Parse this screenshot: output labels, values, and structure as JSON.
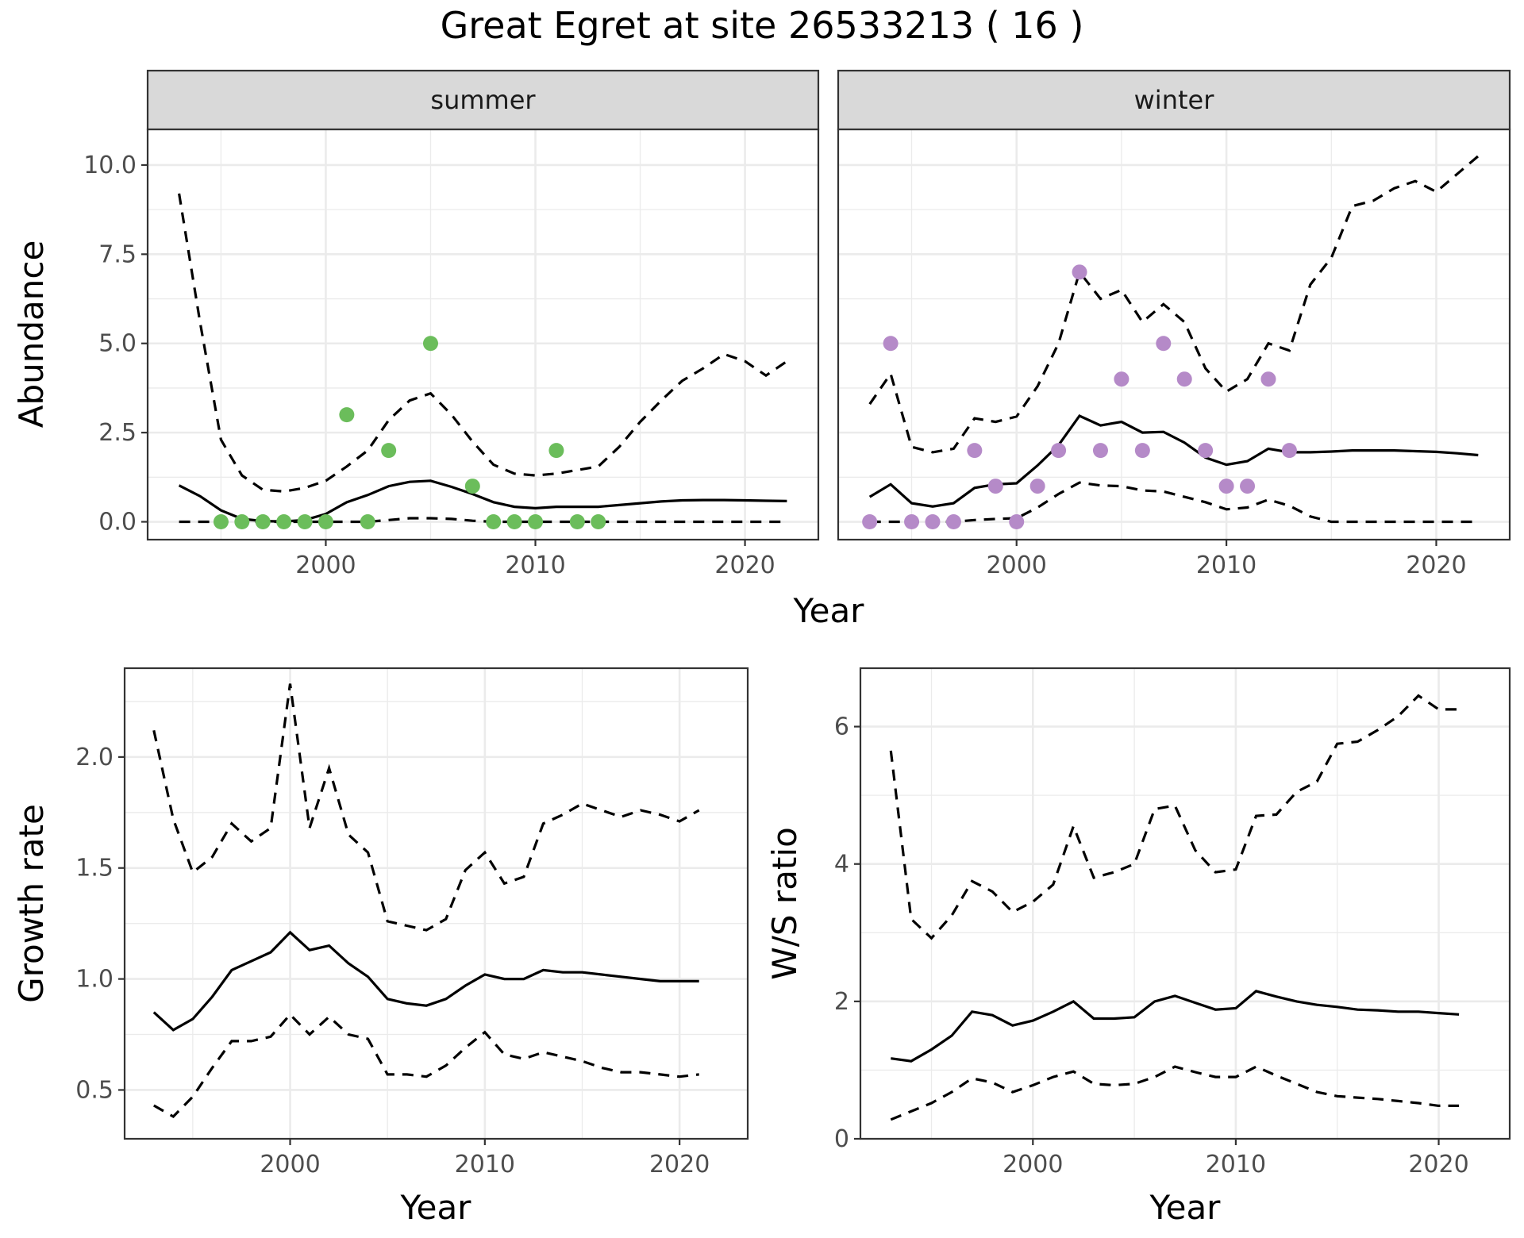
{
  "title": "Great Egret at site 26533213 ( 16 )",
  "chart_data": [
    {
      "type": "line",
      "panel": "abundance",
      "facets": [
        "summer",
        "winter"
      ],
      "xlabel": "Year",
      "ylabel": "Abundance",
      "xlim": [
        1991.5,
        2023.5
      ],
      "ylim": [
        -0.5,
        11.0
      ],
      "x_ticks": [
        2000,
        2010,
        2020
      ],
      "y_ticks": [
        0.0,
        2.5,
        5.0,
        7.5,
        10.0
      ],
      "y_tick_labels": [
        "0.0",
        "2.5",
        "5.0",
        "7.5",
        "10.0"
      ],
      "grid": true,
      "point_colors": {
        "summer": "#6bbd5b",
        "winter": "#b58ac8"
      },
      "summer": {
        "x": [
          1993,
          1994,
          1995,
          1996,
          1997,
          1998,
          1999,
          2000,
          2001,
          2002,
          2003,
          2004,
          2005,
          2006,
          2007,
          2008,
          2009,
          2010,
          2011,
          2012,
          2013,
          2014,
          2015,
          2016,
          2017,
          2018,
          2019,
          2020,
          2021,
          2022
        ],
        "estimate": [
          1.02,
          0.72,
          0.32,
          0.08,
          0.02,
          0.01,
          0.05,
          0.22,
          0.55,
          0.75,
          1.0,
          1.12,
          1.15,
          0.98,
          0.78,
          0.55,
          0.42,
          0.38,
          0.42,
          0.42,
          0.42,
          0.47,
          0.52,
          0.57,
          0.6,
          0.61,
          0.61,
          0.6,
          0.59,
          0.58
        ],
        "upper": [
          9.2,
          5.6,
          2.3,
          1.3,
          0.9,
          0.85,
          0.95,
          1.15,
          1.55,
          2.0,
          2.85,
          3.4,
          3.6,
          3.0,
          2.25,
          1.6,
          1.35,
          1.3,
          1.35,
          1.45,
          1.55,
          2.1,
          2.8,
          3.4,
          3.95,
          4.3,
          4.7,
          4.5,
          4.1,
          4.5
        ],
        "lower": [
          0.0,
          0.0,
          0.0,
          0.0,
          0.0,
          0.0,
          0.0,
          0.0,
          0.0,
          0.0,
          0.05,
          0.1,
          0.1,
          0.08,
          0.03,
          0.0,
          0.0,
          0.0,
          0.0,
          0.0,
          0.0,
          0.0,
          0.0,
          0.0,
          0.0,
          0.0,
          0.0,
          0.0,
          0.0,
          0.0
        ],
        "observed_x": [
          1995,
          1996,
          1997,
          1998,
          1999,
          2000,
          2001,
          2002,
          2003,
          2005,
          2007,
          2008,
          2009,
          2010,
          2011,
          2012,
          2013
        ],
        "observed_y": [
          0,
          0,
          0,
          0,
          0,
          0,
          3,
          0,
          2,
          5,
          1,
          0,
          0,
          0,
          2,
          0,
          0
        ]
      },
      "winter": {
        "x": [
          1993,
          1994,
          1995,
          1996,
          1997,
          1998,
          1999,
          2000,
          2001,
          2002,
          2003,
          2004,
          2005,
          2006,
          2007,
          2008,
          2009,
          2010,
          2011,
          2012,
          2013,
          2014,
          2015,
          2016,
          2017,
          2018,
          2019,
          2020,
          2021,
          2022
        ],
        "estimate": [
          0.7,
          1.05,
          0.52,
          0.43,
          0.52,
          0.95,
          1.05,
          1.08,
          1.58,
          2.15,
          2.97,
          2.7,
          2.8,
          2.5,
          2.52,
          2.22,
          1.8,
          1.6,
          1.7,
          2.05,
          1.95,
          1.95,
          1.97,
          2.0,
          2.0,
          2.0,
          1.98,
          1.96,
          1.92,
          1.87
        ],
        "upper": [
          3.3,
          4.15,
          2.1,
          1.95,
          2.05,
          2.9,
          2.8,
          2.95,
          3.8,
          5.0,
          7.0,
          6.25,
          6.5,
          5.6,
          6.1,
          5.6,
          4.3,
          3.65,
          4.0,
          5.0,
          4.8,
          6.65,
          7.4,
          8.85,
          9.0,
          9.35,
          9.55,
          9.25,
          9.75,
          10.25
        ],
        "lower": [
          0.0,
          0.0,
          0.0,
          0.0,
          0.0,
          0.05,
          0.08,
          0.1,
          0.4,
          0.78,
          1.1,
          1.02,
          1.0,
          0.88,
          0.85,
          0.7,
          0.55,
          0.35,
          0.4,
          0.62,
          0.45,
          0.15,
          0.0,
          0.0,
          0.0,
          0.0,
          0.0,
          0.0,
          0.0,
          0.0
        ],
        "observed_x": [
          1993,
          1994,
          1995,
          1996,
          1997,
          1998,
          1999,
          2000,
          2001,
          2002,
          2003,
          2004,
          2005,
          2006,
          2007,
          2008,
          2009,
          2010,
          2011,
          2012,
          2013
        ],
        "observed_y": [
          0,
          5,
          0,
          0,
          0,
          2,
          1,
          0,
          1,
          2,
          7,
          2,
          4,
          2,
          5,
          4,
          2,
          1,
          1,
          4,
          2
        ]
      }
    },
    {
      "type": "line",
      "panel": "growth",
      "xlabel": "Year",
      "ylabel": "Growth rate",
      "xlim": [
        1991.5,
        2023.5
      ],
      "ylim": [
        0.28,
        2.4
      ],
      "x_ticks": [
        2000,
        2010,
        2020
      ],
      "y_ticks": [
        0.5,
        1.0,
        1.5,
        2.0
      ],
      "y_tick_labels": [
        "0.5",
        "1.0",
        "1.5",
        "2.0"
      ],
      "grid": true,
      "x": [
        1993,
        1994,
        1995,
        1996,
        1997,
        1998,
        1999,
        2000,
        2001,
        2002,
        2003,
        2004,
        2005,
        2006,
        2007,
        2008,
        2009,
        2010,
        2011,
        2012,
        2013,
        2014,
        2015,
        2016,
        2017,
        2018,
        2019,
        2020,
        2021
      ],
      "estimate": [
        0.85,
        0.77,
        0.82,
        0.92,
        1.04,
        1.08,
        1.12,
        1.21,
        1.13,
        1.15,
        1.07,
        1.01,
        0.91,
        0.89,
        0.88,
        0.91,
        0.97,
        1.02,
        1.0,
        1.0,
        1.04,
        1.03,
        1.03,
        1.02,
        1.01,
        1.0,
        0.99,
        0.99,
        0.99
      ],
      "upper": [
        2.12,
        1.72,
        1.48,
        1.55,
        1.7,
        1.62,
        1.68,
        2.33,
        1.68,
        1.95,
        1.65,
        1.57,
        1.26,
        1.24,
        1.22,
        1.27,
        1.49,
        1.57,
        1.43,
        1.46,
        1.7,
        1.74,
        1.79,
        1.76,
        1.73,
        1.76,
        1.74,
        1.71,
        1.76
      ],
      "lower": [
        0.43,
        0.38,
        0.47,
        0.6,
        0.72,
        0.72,
        0.74,
        0.84,
        0.75,
        0.83,
        0.75,
        0.73,
        0.57,
        0.57,
        0.56,
        0.61,
        0.69,
        0.76,
        0.66,
        0.64,
        0.67,
        0.65,
        0.63,
        0.6,
        0.58,
        0.58,
        0.57,
        0.56,
        0.57
      ]
    },
    {
      "type": "line",
      "panel": "ws_ratio",
      "xlabel": "Year",
      "ylabel": "W/S ratio",
      "xlim": [
        1991.5,
        2023.5
      ],
      "ylim": [
        0.0,
        6.85
      ],
      "x_ticks": [
        2000,
        2010,
        2020
      ],
      "y_ticks": [
        0,
        2,
        4,
        6
      ],
      "y_tick_labels": [
        "0",
        "2",
        "4",
        "6"
      ],
      "grid": true,
      "x": [
        1993,
        1994,
        1995,
        1996,
        1997,
        1998,
        1999,
        2000,
        2001,
        2002,
        2003,
        2004,
        2005,
        2006,
        2007,
        2008,
        2009,
        2010,
        2011,
        2012,
        2013,
        2014,
        2015,
        2016,
        2017,
        2018,
        2019,
        2020,
        2021
      ],
      "estimate": [
        1.17,
        1.13,
        1.3,
        1.5,
        1.85,
        1.8,
        1.65,
        1.72,
        1.85,
        2.0,
        1.75,
        1.75,
        1.77,
        2.0,
        2.08,
        1.98,
        1.88,
        1.9,
        2.15,
        2.07,
        2.0,
        1.95,
        1.92,
        1.88,
        1.87,
        1.85,
        1.85,
        1.83,
        1.81
      ],
      "upper": [
        5.65,
        3.2,
        2.92,
        3.25,
        3.75,
        3.6,
        3.3,
        3.45,
        3.7,
        4.55,
        3.8,
        3.88,
        4.0,
        4.8,
        4.85,
        4.2,
        3.88,
        3.92,
        4.7,
        4.72,
        5.05,
        5.2,
        5.75,
        5.78,
        5.95,
        6.15,
        6.45,
        6.25,
        6.25
      ],
      "lower": [
        0.28,
        0.4,
        0.52,
        0.68,
        0.88,
        0.82,
        0.68,
        0.78,
        0.9,
        0.98,
        0.8,
        0.78,
        0.8,
        0.9,
        1.05,
        0.97,
        0.9,
        0.9,
        1.05,
        0.92,
        0.8,
        0.68,
        0.62,
        0.6,
        0.58,
        0.55,
        0.52,
        0.48,
        0.48
      ]
    }
  ]
}
